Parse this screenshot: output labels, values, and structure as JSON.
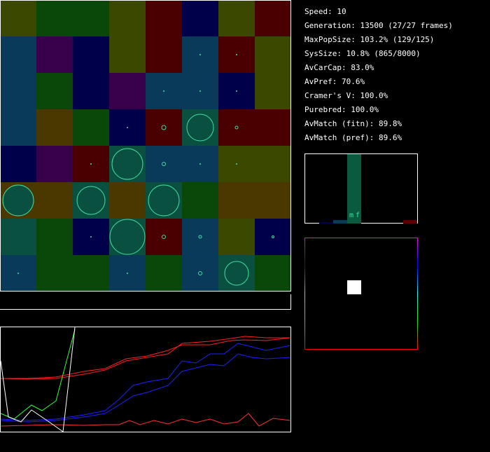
{
  "stats": [
    "Speed: 10",
    "Generation: 13500 (27/27 frames)",
    "MaxPopSize: 103.2% (129/125)",
    "SysSize: 10.8% (865/8000)",
    "AvCarCap: 83.0%",
    "AvPref: 70.6%",
    "Cramer's V: 100.0%",
    "Purebred: 100.0%",
    "AvMatch (fitn): 89.8%",
    "AvMatch (pref): 89.6%"
  ],
  "histogram": {
    "labels": [
      "m",
      "f"
    ]
  }
}
